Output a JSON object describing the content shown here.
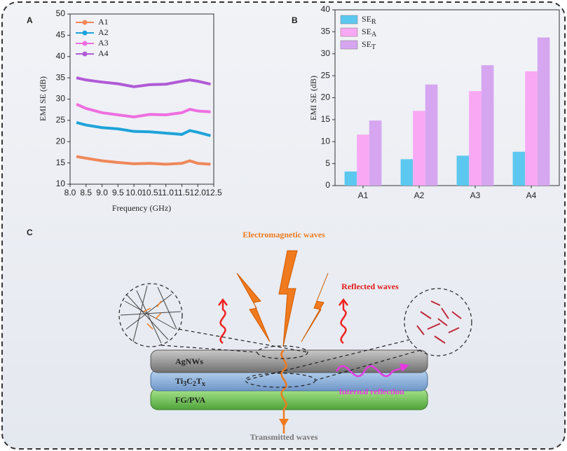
{
  "chart_data": [
    {
      "type": "line",
      "panel": "A",
      "xlabel": "Frequency (GHz)",
      "ylabel": "EMI SE (dB)",
      "x": [
        8.2,
        8.5,
        9.0,
        9.5,
        10.0,
        10.5,
        11.0,
        11.5,
        11.75,
        12.0,
        12.4
      ],
      "series": [
        {
          "name": "A1",
          "color": "#f0875a",
          "values": [
            16.5,
            16.1,
            15.5,
            15.1,
            14.8,
            14.9,
            14.7,
            14.9,
            15.5,
            14.9,
            14.7
          ]
        },
        {
          "name": "A2",
          "color": "#1ea3d9",
          "values": [
            24.5,
            23.9,
            23.3,
            23.0,
            22.4,
            22.3,
            22.0,
            21.7,
            22.6,
            22.2,
            21.4
          ]
        },
        {
          "name": "A3",
          "color": "#ee6ee0",
          "values": [
            28.8,
            27.8,
            26.8,
            26.3,
            25.8,
            26.4,
            26.3,
            26.8,
            27.6,
            27.2,
            27.0
          ]
        },
        {
          "name": "A4",
          "color": "#b05ad6",
          "values": [
            35.0,
            34.5,
            34.0,
            33.6,
            32.9,
            33.4,
            33.5,
            34.2,
            34.5,
            34.2,
            33.5
          ]
        }
      ],
      "xlim": [
        8.0,
        12.5
      ],
      "xticks": [
        {
          "value": 8,
          "label": "8.0"
        },
        8.5,
        {
          "value": 9,
          "label": "9.0"
        },
        9.5,
        {
          "value": 10,
          "label": "10.0"
        },
        10.5,
        {
          "value": 11,
          "label": "11.0"
        },
        11.5,
        {
          "value": 12,
          "label": "12.0"
        },
        12.5
      ],
      "ylim": [
        10,
        50
      ],
      "yticks": [
        10,
        15,
        20,
        25,
        30,
        35,
        40,
        45,
        50
      ],
      "legend": "upper left"
    },
    {
      "type": "bar",
      "panel": "B",
      "ylabel": "EMI SE (dB)",
      "categories": [
        "A1",
        "A2",
        "A3",
        "A4"
      ],
      "series": [
        {
          "name": "SER",
          "color": "#5cc8f0",
          "values": [
            3.2,
            6.0,
            6.8,
            7.7
          ]
        },
        {
          "name": "SEA",
          "color": "#f9a8f3",
          "values": [
            11.6,
            17.0,
            21.5,
            26.0
          ]
        },
        {
          "name": "SET",
          "color": "#d6a6f0",
          "values": [
            14.8,
            23.0,
            27.4,
            33.7
          ]
        }
      ],
      "ylim": [
        0,
        40
      ],
      "yticks": [
        0,
        5,
        10,
        15,
        20,
        25,
        30,
        35,
        40
      ],
      "legend": "upper left"
    }
  ],
  "diagram": {
    "panel": "C",
    "incident": "Electromagnetic waves",
    "reflected": "Reflected waves",
    "layers": [
      "AgNWs",
      "Ti3C2Tx",
      "FG/PVA"
    ],
    "internal": "Internal reflection",
    "transmitted": "Transmitted waves"
  }
}
